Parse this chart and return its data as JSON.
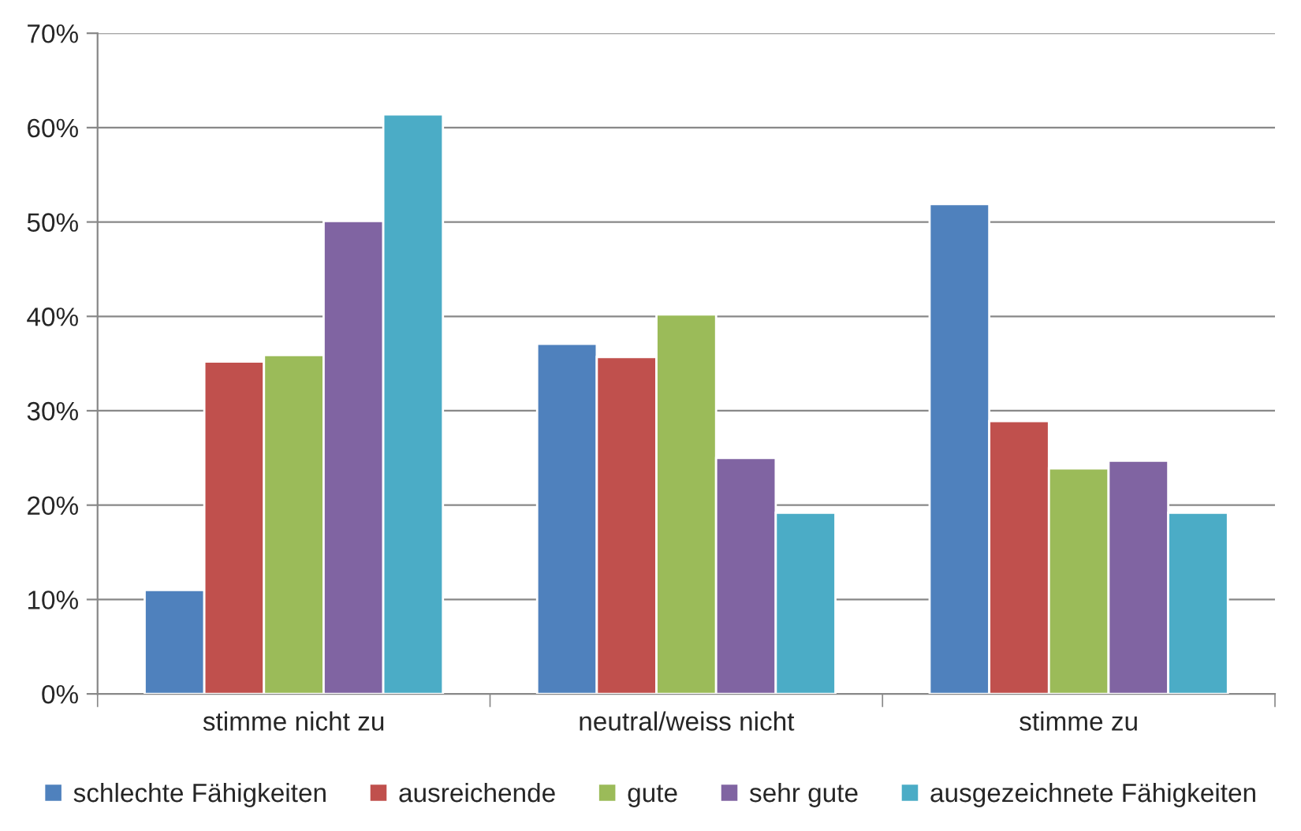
{
  "chart_data": {
    "type": "bar",
    "categories": [
      "stimme nicht zu",
      "neutral/weiss nicht",
      "stimme zu"
    ],
    "series": [
      {
        "name": "schlechte Fähigkeiten",
        "color": "#4f81bd",
        "values": [
          11.0,
          37.1,
          51.9
        ]
      },
      {
        "name": "ausreichende",
        "color": "#c0504d",
        "values": [
          35.2,
          35.7,
          28.9
        ]
      },
      {
        "name": "gute",
        "color": "#9bbb59",
        "values": [
          35.9,
          40.2,
          23.9
        ]
      },
      {
        "name": "sehr gute",
        "color": "#8064a2",
        "values": [
          50.1,
          25.0,
          24.7
        ]
      },
      {
        "name": "ausgezeichnete Fähigkeiten",
        "color": "#4bacc6",
        "values": [
          61.4,
          19.2,
          19.2
        ]
      }
    ],
    "ylim": [
      0,
      70
    ],
    "yticks": [
      {
        "value": 0,
        "label": "0%"
      },
      {
        "value": 10,
        "label": "10%"
      },
      {
        "value": 20,
        "label": "20%"
      },
      {
        "value": 30,
        "label": "30%"
      },
      {
        "value": 40,
        "label": "40%"
      },
      {
        "value": 50,
        "label": "50%"
      },
      {
        "value": 60,
        "label": "60%"
      },
      {
        "value": 70,
        "label": "70%"
      }
    ],
    "grid": "y",
    "legend": "bottom"
  }
}
